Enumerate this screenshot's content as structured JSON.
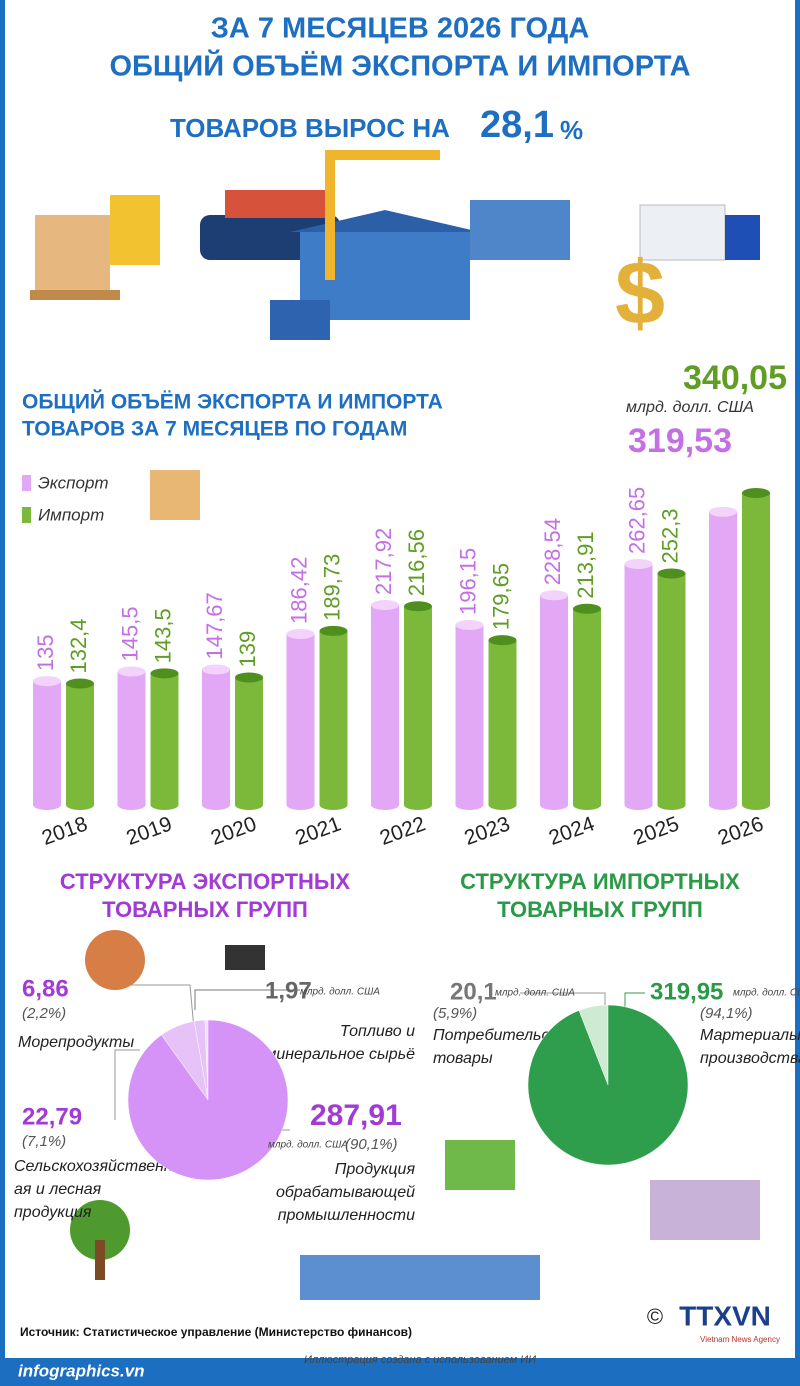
{
  "header": {
    "title_lines": [
      "ЗА 7 МЕСЯЦЕВ 2026 ГОДА",
      "ОБЩИЙ ОБЪЁМ ЭКСПОРТА И ИМПОРТА"
    ],
    "subtitle": "ТОВАРОВ ВЫРОС НА",
    "growth": "28,1",
    "growth_unit": "%"
  },
  "chart_data": [
    {
      "type": "bar",
      "title_lines": [
        "ОБЩИЙ ОБЪЁМ ЭКСПОРТА И ИМПОРТА",
        "ТОВАРОВ ЗА 7 МЕСЯЦЕВ ПО ГОДАМ"
      ],
      "categories": [
        "2018",
        "2019",
        "2020",
        "2021",
        "2022",
        "2023",
        "2024",
        "2025",
        "2026"
      ],
      "series": [
        {
          "name": "Экспорт",
          "color": "#e2a8f6",
          "values": [
            135,
            145.5,
            147.67,
            186.42,
            217.92,
            196.15,
            228.54,
            262.65,
            319.53
          ],
          "value_labels": [
            "135",
            "145,5",
            "147,67",
            "186,42",
            "217,92",
            "196,15",
            "228,54",
            "262,65",
            "319,53"
          ]
        },
        {
          "name": "Импорт",
          "color": "#7cb83a",
          "values": [
            132.4,
            143.5,
            139,
            189.73,
            216.56,
            179.65,
            213.91,
            252.3,
            340.05
          ],
          "value_labels": [
            "132,4",
            "143,5",
            "139",
            "189,73",
            "216,56",
            "179,65",
            "213,91",
            "252,3",
            "340,05"
          ]
        }
      ],
      "unit": "млрд. долл. США"
    },
    {
      "type": "pie",
      "title_lines": [
        "СТРУКТУРА ЭКСПОРТНЫХ",
        "ТОВАРНЫХ ГРУПП"
      ],
      "categories": [
        [
          "Топливо и",
          "минеральное сырьё"
        ],
        [
          "Морепродукты"
        ],
        [
          "Сельскохозяйственн",
          "ая и лесная",
          "продукция"
        ],
        [
          "Продукция",
          "обрабатывающей",
          "промышленности"
        ]
      ],
      "values": [
        1.97,
        6.86,
        22.79,
        287.91
      ],
      "value_labels": [
        "1,97",
        "6,86",
        "22,79",
        "287,91"
      ],
      "units": [
        "млрд. долл. США",
        null,
        null,
        "млрд. долл. США"
      ],
      "shares": [
        null,
        2.2,
        7.1,
        90.1
      ],
      "share_labels": [
        null,
        "(2,2%)",
        "(7,1%)",
        "(90,1%)"
      ],
      "colors": [
        "#f1dcfb",
        "#e6c2f8",
        "#e6c2f8",
        "#d693f7"
      ]
    },
    {
      "type": "pie",
      "title_lines": [
        "СТРУКТУРА ИМПОРТНЫХ",
        "ТОВАРНЫХ ГРУПП"
      ],
      "categories": [
        [
          "Потребительские",
          "товары"
        ],
        [
          "Мартериалы",
          "производства"
        ]
      ],
      "values": [
        20.1,
        319.95
      ],
      "value_labels": [
        "20,1",
        "319,95"
      ],
      "units": [
        "млрд. долл. США",
        "млрд. долл. США"
      ],
      "shares": [
        5.9,
        94.1
      ],
      "share_labels": [
        "(5,9%)",
        "(94,1%)"
      ],
      "colors": [
        "#cfead2",
        "#2f9e4c"
      ]
    }
  ],
  "footer": {
    "source": "Источник: Статистическое управление (Министерство финансов)",
    "site": "infographics.vn",
    "note": "Иллюстрация создана с использованием ИИ",
    "copyright": "©",
    "logo": "TTXVN",
    "logo_sub": "Vietnam News Agency"
  }
}
